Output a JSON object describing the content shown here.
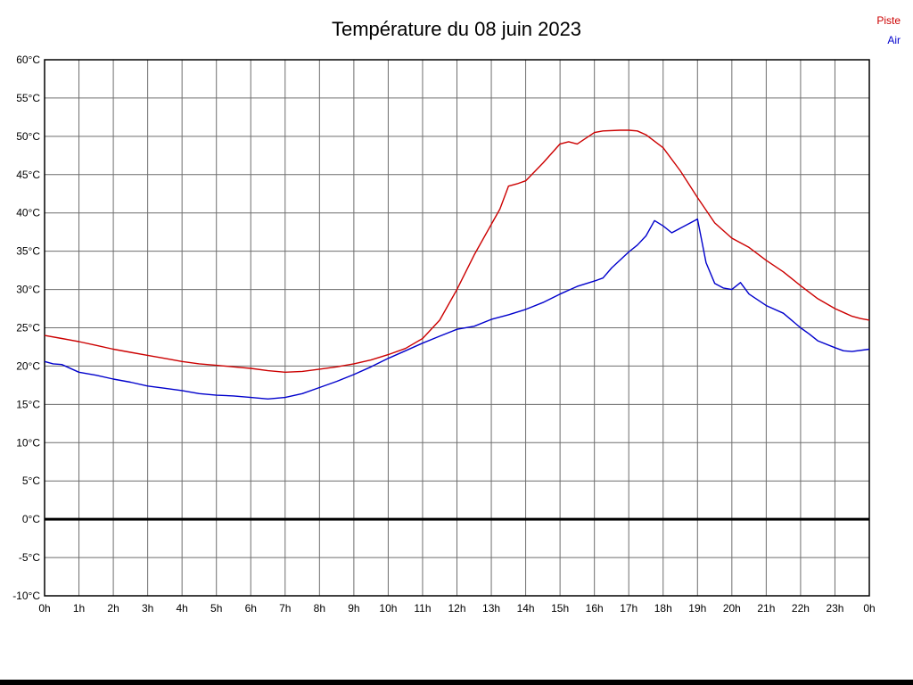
{
  "chart_data": {
    "type": "line",
    "title": "Température du 08 juin 2023",
    "xlabel": "",
    "ylabel": "",
    "xlim": [
      0,
      24
    ],
    "ylim": [
      -10,
      60
    ],
    "y_tick_step": 5,
    "y_unit": "°C",
    "x_tick_labels": [
      "0h",
      "1h",
      "2h",
      "3h",
      "4h",
      "5h",
      "6h",
      "7h",
      "8h",
      "9h",
      "10h",
      "11h",
      "12h",
      "13h",
      "14h",
      "15h",
      "16h",
      "17h",
      "18h",
      "19h",
      "20h",
      "21h",
      "22h",
      "23h",
      "0h"
    ],
    "grid": true,
    "zero_line": {
      "y": 0,
      "color": "#000000",
      "width": 3
    },
    "legend": {
      "position": "top-right",
      "entries": [
        {
          "label": "Piste",
          "color": "#cc0000"
        },
        {
          "label": "Air",
          "color": "#0000cc"
        }
      ]
    },
    "series": [
      {
        "name": "Piste",
        "color": "#cc0000",
        "points": [
          [
            0,
            24.0
          ],
          [
            0.5,
            23.6
          ],
          [
            1,
            23.2
          ],
          [
            1.5,
            22.7
          ],
          [
            2,
            22.2
          ],
          [
            2.5,
            21.8
          ],
          [
            3,
            21.4
          ],
          [
            3.5,
            21.0
          ],
          [
            4,
            20.6
          ],
          [
            4.5,
            20.3
          ],
          [
            5,
            20.1
          ],
          [
            5.5,
            19.9
          ],
          [
            6,
            19.7
          ],
          [
            6.5,
            19.4
          ],
          [
            7,
            19.2
          ],
          [
            7.5,
            19.3
          ],
          [
            8,
            19.6
          ],
          [
            8.5,
            19.9
          ],
          [
            9,
            20.3
          ],
          [
            9.5,
            20.8
          ],
          [
            10,
            21.5
          ],
          [
            10.5,
            22.3
          ],
          [
            11,
            23.6
          ],
          [
            11.5,
            26.0
          ],
          [
            12,
            30.0
          ],
          [
            12.5,
            34.5
          ],
          [
            13,
            38.5
          ],
          [
            13.25,
            40.5
          ],
          [
            13.5,
            43.5
          ],
          [
            13.75,
            43.8
          ],
          [
            14,
            44.2
          ],
          [
            14.5,
            46.5
          ],
          [
            15,
            49.0
          ],
          [
            15.25,
            49.3
          ],
          [
            15.5,
            49.0
          ],
          [
            16,
            50.5
          ],
          [
            16.25,
            50.7
          ],
          [
            16.75,
            50.8
          ],
          [
            17,
            50.8
          ],
          [
            17.25,
            50.7
          ],
          [
            17.5,
            50.2
          ],
          [
            18,
            48.5
          ],
          [
            18.5,
            45.5
          ],
          [
            19,
            42.0
          ],
          [
            19.5,
            38.7
          ],
          [
            20,
            36.7
          ],
          [
            20.5,
            35.5
          ],
          [
            21,
            33.8
          ],
          [
            21.5,
            32.3
          ],
          [
            22,
            30.5
          ],
          [
            22.5,
            28.8
          ],
          [
            23,
            27.5
          ],
          [
            23.25,
            27.0
          ],
          [
            23.5,
            26.5
          ],
          [
            23.75,
            26.2
          ],
          [
            24,
            26.0
          ]
        ]
      },
      {
        "name": "Air",
        "color": "#0000cc",
        "points": [
          [
            0,
            20.6
          ],
          [
            0.25,
            20.3
          ],
          [
            0.5,
            20.2
          ],
          [
            1,
            19.2
          ],
          [
            1.5,
            18.8
          ],
          [
            2,
            18.3
          ],
          [
            2.5,
            17.9
          ],
          [
            3,
            17.4
          ],
          [
            3.5,
            17.1
          ],
          [
            4,
            16.8
          ],
          [
            4.5,
            16.4
          ],
          [
            5,
            16.2
          ],
          [
            5.5,
            16.1
          ],
          [
            6,
            15.9
          ],
          [
            6.5,
            15.7
          ],
          [
            7,
            15.9
          ],
          [
            7.5,
            16.4
          ],
          [
            8,
            17.2
          ],
          [
            8.5,
            18.0
          ],
          [
            9,
            18.9
          ],
          [
            9.5,
            19.9
          ],
          [
            10,
            21.0
          ],
          [
            10.5,
            22.0
          ],
          [
            11,
            23.0
          ],
          [
            11.5,
            23.9
          ],
          [
            12,
            24.8
          ],
          [
            12.5,
            25.2
          ],
          [
            13,
            26.1
          ],
          [
            13.5,
            26.7
          ],
          [
            14,
            27.4
          ],
          [
            14.5,
            28.3
          ],
          [
            15,
            29.4
          ],
          [
            15.5,
            30.4
          ],
          [
            16,
            31.1
          ],
          [
            16.25,
            31.5
          ],
          [
            16.5,
            32.8
          ],
          [
            17,
            34.9
          ],
          [
            17.25,
            35.8
          ],
          [
            17.5,
            37.0
          ],
          [
            17.75,
            39.0
          ],
          [
            18,
            38.3
          ],
          [
            18.25,
            37.4
          ],
          [
            18.5,
            38.0
          ],
          [
            18.75,
            38.6
          ],
          [
            19,
            39.2
          ],
          [
            19.25,
            33.5
          ],
          [
            19.5,
            30.8
          ],
          [
            19.75,
            30.2
          ],
          [
            20,
            30.0
          ],
          [
            20.25,
            30.9
          ],
          [
            20.5,
            29.4
          ],
          [
            21,
            27.9
          ],
          [
            21.5,
            26.9
          ],
          [
            22,
            25.0
          ],
          [
            22.25,
            24.2
          ],
          [
            22.5,
            23.3
          ],
          [
            23,
            22.4
          ],
          [
            23.25,
            22.0
          ],
          [
            23.5,
            21.9
          ],
          [
            24,
            22.2
          ]
        ]
      }
    ]
  },
  "style": {
    "grid_color": "#6e6e6e",
    "frame_color": "#000000",
    "tick_label_color": "#000000"
  }
}
